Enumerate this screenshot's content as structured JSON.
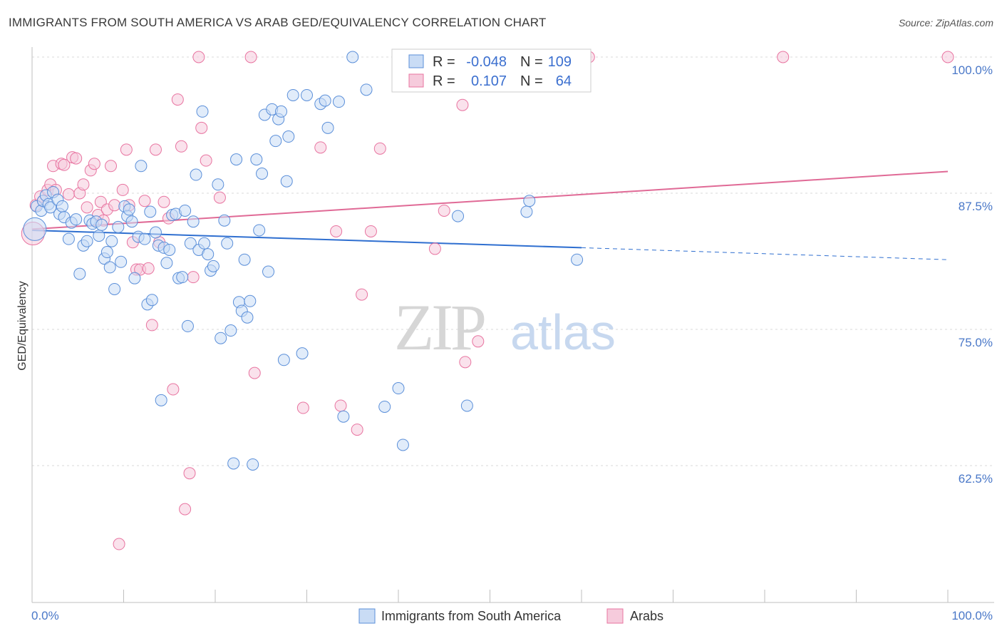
{
  "title": "IMMIGRANTS FROM SOUTH AMERICA VS ARAB GED/EQUIVALENCY CORRELATION CHART",
  "source": "Source: ZipAtlas.com",
  "watermark": {
    "zip": "ZIP",
    "atlas": "atlas"
  },
  "colors": {
    "blue": "#5b8fd9",
    "blue_fill": "#c9dcf5",
    "pink": "#e874a0",
    "pink_fill": "#f6cbdc",
    "blue_line": "#2f6fd0",
    "pink_line": "#e06a96",
    "tick_text": "#4a78c8"
  },
  "legend_top": {
    "r_label": "R =",
    "n_label": "N =",
    "rows": [
      {
        "r": "-0.048",
        "n": "109",
        "series": "blue"
      },
      {
        "r": "0.107",
        "n": "64",
        "series": "pink"
      }
    ]
  },
  "legend_bottom": [
    {
      "label": "Immigrants from South America",
      "series": "blue"
    },
    {
      "label": "Arabs",
      "series": "pink"
    }
  ],
  "chart_data": {
    "type": "scatter",
    "title": "IMMIGRANTS FROM SOUTH AMERICA VS ARAB GED/EQUIVALENCY CORRELATION CHART",
    "xlabel": "",
    "ylabel": "GED/Equivalency",
    "xlim": [
      0,
      100
    ],
    "ylim": [
      51,
      102
    ],
    "x_tick_labels": [
      {
        "value": 0,
        "label": "0.0%"
      },
      {
        "value": 100,
        "label": "100.0%"
      }
    ],
    "y_ticks": [
      {
        "value": 100,
        "label": "100.0%"
      },
      {
        "value": 87.5,
        "label": "87.5%"
      },
      {
        "value": 75,
        "label": "75.0%"
      },
      {
        "value": 62.5,
        "label": "62.5%"
      }
    ],
    "grid": "horizontal dashed",
    "legend_position": "top-center",
    "series": [
      {
        "name": "Immigrants from South America",
        "color": "#5b8fd9",
        "trend": {
          "x0": 0,
          "y0": 84.1,
          "x1": 60,
          "y1": 82.5,
          "dashed_to_x": 100,
          "dashed_to_y": 81.4
        },
        "points": [
          [
            0.3,
            84.2
          ],
          [
            0.5,
            86.3
          ],
          [
            1.0,
            85.9
          ],
          [
            1.2,
            86.8
          ],
          [
            1.5,
            87.3
          ],
          [
            1.8,
            86.5
          ],
          [
            2.0,
            86.2
          ],
          [
            2.3,
            87.6
          ],
          [
            2.8,
            86.9
          ],
          [
            3.0,
            85.6
          ],
          [
            3.3,
            86.3
          ],
          [
            3.5,
            85.3
          ],
          [
            4.0,
            83.3
          ],
          [
            4.3,
            84.8
          ],
          [
            4.8,
            85.1
          ],
          [
            5.2,
            80.1
          ],
          [
            5.6,
            82.7
          ],
          [
            6.0,
            83.1
          ],
          [
            6.3,
            85.0
          ],
          [
            6.6,
            84.7
          ],
          [
            7.0,
            84.9
          ],
          [
            7.3,
            83.6
          ],
          [
            7.6,
            84.6
          ],
          [
            7.9,
            81.5
          ],
          [
            8.2,
            82.1
          ],
          [
            8.5,
            80.7
          ],
          [
            8.7,
            83.1
          ],
          [
            9.0,
            78.7
          ],
          [
            9.4,
            84.4
          ],
          [
            9.7,
            81.2
          ],
          [
            10.1,
            86.3
          ],
          [
            10.4,
            85.4
          ],
          [
            10.6,
            86.0
          ],
          [
            10.9,
            84.9
          ],
          [
            11.2,
            79.7
          ],
          [
            11.6,
            83.5
          ],
          [
            11.9,
            90.0
          ],
          [
            12.3,
            83.3
          ],
          [
            12.6,
            77.3
          ],
          [
            12.9,
            85.8
          ],
          [
            13.1,
            77.7
          ],
          [
            13.5,
            83.9
          ],
          [
            13.8,
            82.7
          ],
          [
            14.1,
            68.5
          ],
          [
            14.4,
            82.5
          ],
          [
            14.7,
            81.1
          ],
          [
            15.0,
            82.3
          ],
          [
            15.3,
            85.5
          ],
          [
            15.7,
            85.6
          ],
          [
            16.0,
            79.7
          ],
          [
            16.4,
            79.8
          ],
          [
            16.7,
            85.9
          ],
          [
            17.0,
            75.3
          ],
          [
            17.3,
            82.9
          ],
          [
            17.6,
            84.9
          ],
          [
            17.9,
            89.2
          ],
          [
            18.2,
            82.3
          ],
          [
            18.6,
            95.0
          ],
          [
            18.8,
            82.9
          ],
          [
            19.2,
            81.9
          ],
          [
            19.5,
            80.4
          ],
          [
            19.8,
            80.8
          ],
          [
            20.3,
            88.3
          ],
          [
            20.6,
            74.2
          ],
          [
            21.0,
            85.0
          ],
          [
            21.3,
            82.9
          ],
          [
            21.7,
            74.9
          ],
          [
            22.0,
            62.7
          ],
          [
            22.3,
            90.6
          ],
          [
            22.6,
            77.5
          ],
          [
            22.9,
            76.7
          ],
          [
            23.2,
            81.4
          ],
          [
            23.5,
            76.1
          ],
          [
            23.8,
            77.6
          ],
          [
            24.1,
            62.6
          ],
          [
            24.5,
            90.6
          ],
          [
            24.8,
            84.1
          ],
          [
            25.1,
            89.3
          ],
          [
            25.4,
            94.7
          ],
          [
            25.8,
            80.3
          ],
          [
            26.2,
            95.2
          ],
          [
            26.6,
            92.3
          ],
          [
            26.9,
            94.3
          ],
          [
            27.2,
            95.0
          ],
          [
            27.5,
            72.2
          ],
          [
            27.8,
            88.6
          ],
          [
            28.0,
            92.7
          ],
          [
            28.5,
            96.5
          ],
          [
            29.5,
            72.8
          ],
          [
            30.0,
            96.5
          ],
          [
            31.5,
            95.7
          ],
          [
            32.0,
            96.0
          ],
          [
            32.3,
            93.5
          ],
          [
            33.5,
            95.9
          ],
          [
            34.0,
            67.0
          ],
          [
            35.0,
            100.0
          ],
          [
            36.5,
            97.0
          ],
          [
            38.5,
            67.9
          ],
          [
            40.0,
            69.6
          ],
          [
            40.5,
            64.4
          ],
          [
            46.5,
            85.4
          ],
          [
            47.5,
            68.0
          ],
          [
            54.0,
            85.8
          ],
          [
            54.3,
            86.8
          ],
          [
            59.5,
            81.4
          ]
        ]
      },
      {
        "name": "Arabs",
        "color": "#e874a0",
        "trend": {
          "x0": 0,
          "y0": 84.2,
          "x1": 100,
          "y1": 89.5
        },
        "points": [
          [
            0.1,
            83.8
          ],
          [
            0.4,
            86.4
          ],
          [
            0.9,
            87.2
          ],
          [
            1.2,
            86.8
          ],
          [
            1.7,
            87.8
          ],
          [
            2.0,
            88.3
          ],
          [
            2.3,
            90.0
          ],
          [
            2.6,
            87.8
          ],
          [
            3.2,
            90.2
          ],
          [
            3.5,
            90.1
          ],
          [
            4.0,
            87.4
          ],
          [
            4.4,
            90.8
          ],
          [
            4.8,
            90.7
          ],
          [
            5.2,
            87.5
          ],
          [
            5.6,
            88.3
          ],
          [
            6.0,
            86.2
          ],
          [
            6.4,
            89.6
          ],
          [
            6.8,
            90.2
          ],
          [
            7.2,
            85.5
          ],
          [
            7.5,
            86.7
          ],
          [
            7.8,
            85.0
          ],
          [
            8.2,
            86.0
          ],
          [
            8.6,
            90.0
          ],
          [
            9.0,
            86.4
          ],
          [
            9.5,
            55.3
          ],
          [
            9.9,
            87.8
          ],
          [
            10.3,
            91.5
          ],
          [
            10.6,
            86.4
          ],
          [
            11.0,
            83.0
          ],
          [
            11.4,
            80.5
          ],
          [
            11.8,
            80.5
          ],
          [
            12.3,
            86.8
          ],
          [
            12.7,
            80.6
          ],
          [
            13.1,
            75.4
          ],
          [
            13.5,
            91.5
          ],
          [
            13.9,
            83.0
          ],
          [
            14.4,
            86.7
          ],
          [
            14.9,
            85.2
          ],
          [
            15.4,
            69.5
          ],
          [
            15.9,
            96.1
          ],
          [
            16.3,
            91.8
          ],
          [
            16.7,
            58.5
          ],
          [
            17.2,
            61.8
          ],
          [
            17.6,
            79.8
          ],
          [
            18.2,
            100.0
          ],
          [
            18.5,
            93.5
          ],
          [
            19.0,
            90.5
          ],
          [
            20.5,
            87.1
          ],
          [
            23.9,
            100.0
          ],
          [
            24.3,
            71.0
          ],
          [
            29.6,
            67.8
          ],
          [
            31.5,
            91.7
          ],
          [
            33.2,
            84.0
          ],
          [
            33.7,
            68.0
          ],
          [
            35.5,
            65.8
          ],
          [
            36.0,
            78.2
          ],
          [
            37.0,
            84.0
          ],
          [
            38.0,
            91.6
          ],
          [
            44.0,
            82.4
          ],
          [
            45.0,
            85.9
          ],
          [
            47.0,
            95.6
          ],
          [
            47.3,
            72.0
          ],
          [
            48.7,
            73.9
          ],
          [
            60.8,
            100.0
          ],
          [
            82.0,
            100.0
          ],
          [
            100.0,
            100.0
          ]
        ]
      }
    ]
  }
}
